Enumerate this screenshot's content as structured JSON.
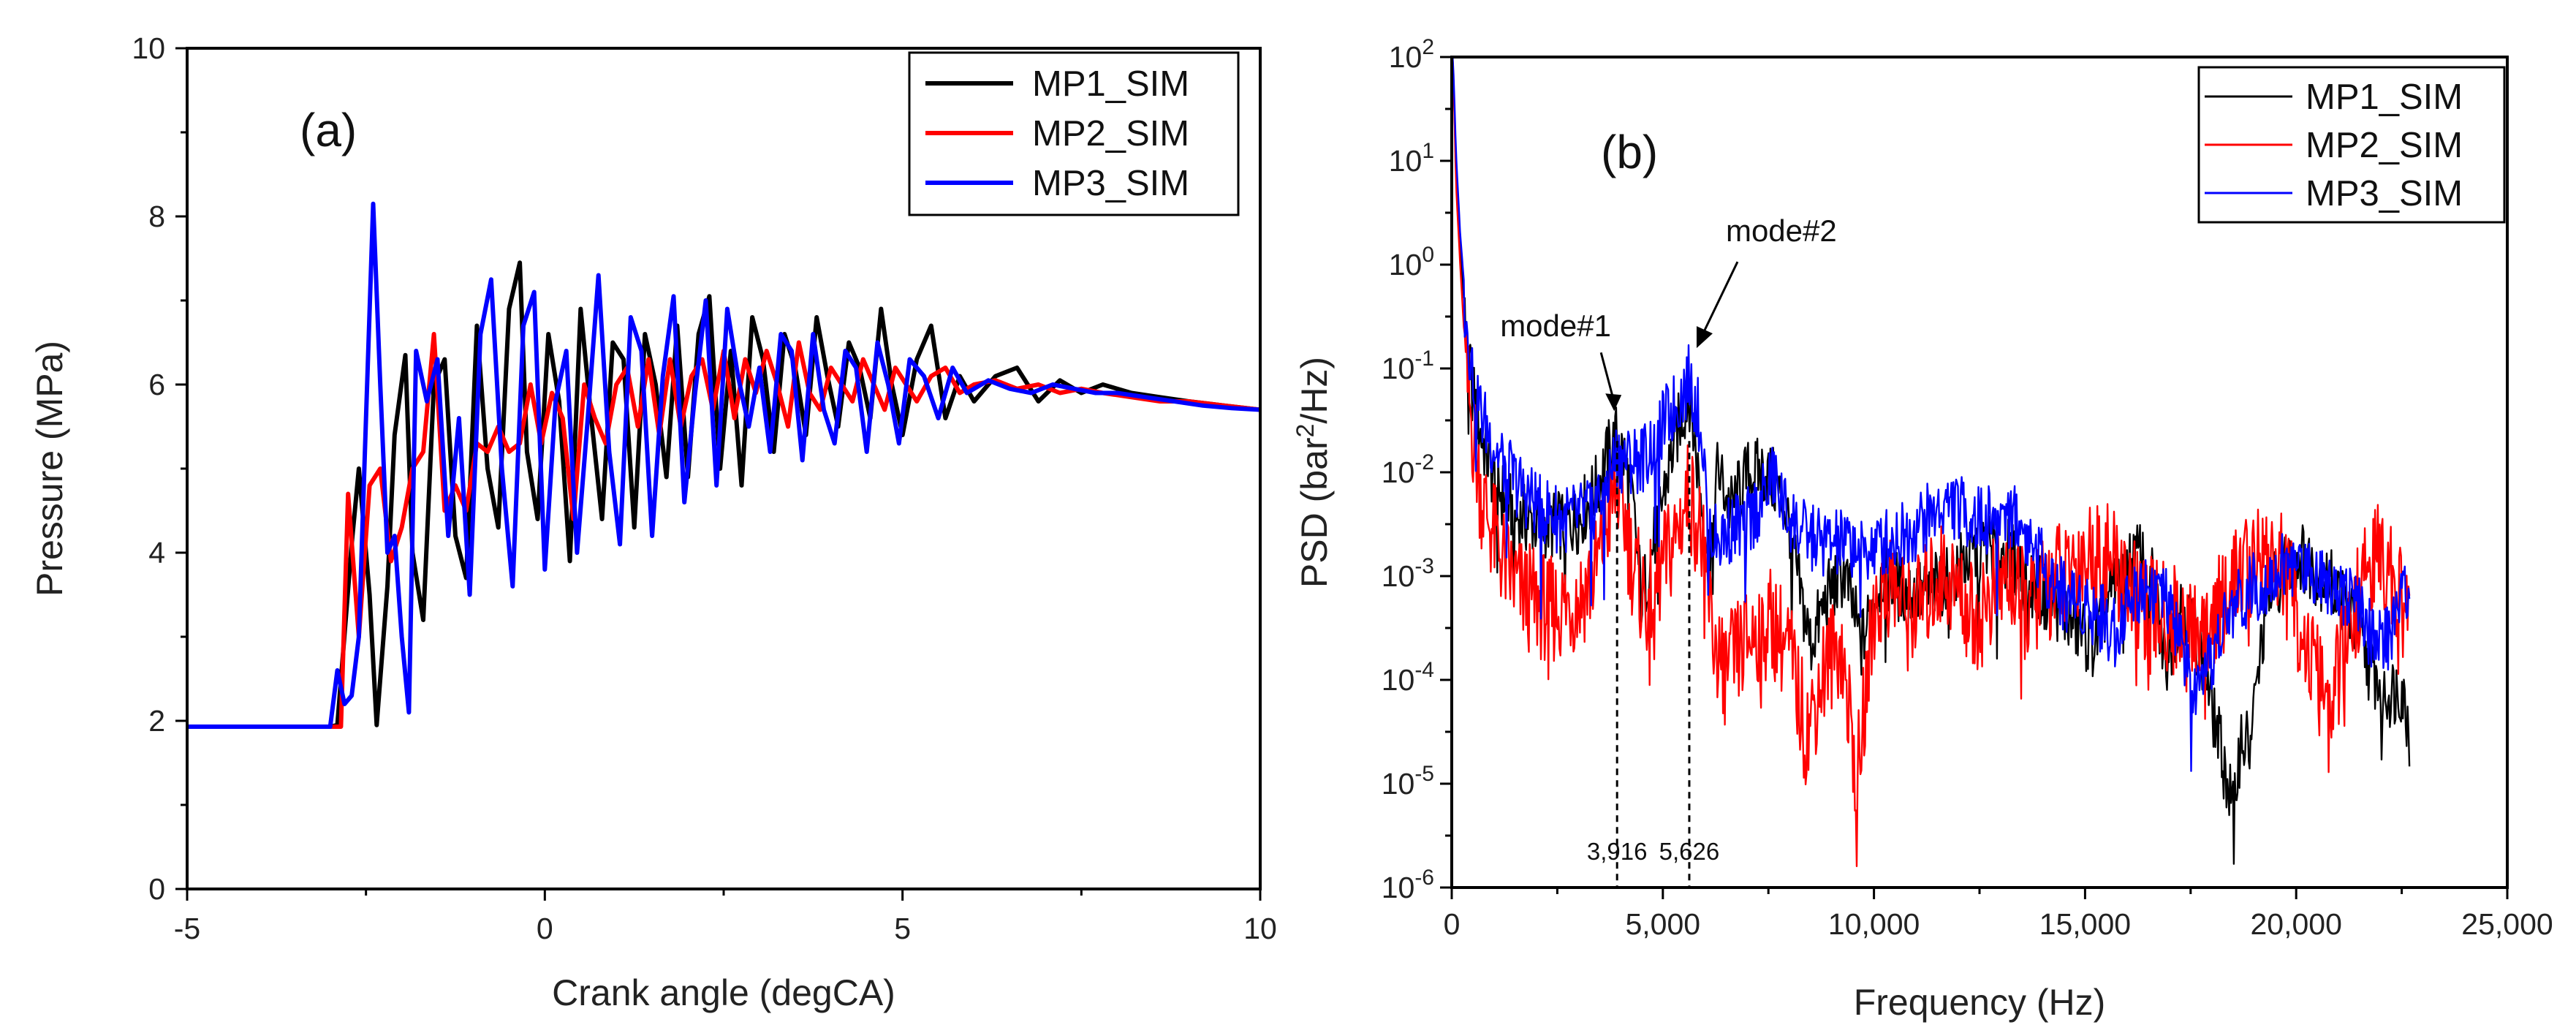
{
  "chart_data": [
    {
      "type": "line",
      "panel_label": "(a)",
      "xlabel": "Crank angle (degCA)",
      "ylabel": "Pressure (MPa)",
      "xlim": [
        -5,
        10
      ],
      "ylim": [
        0,
        10
      ],
      "x_ticks": [
        -5,
        0,
        5,
        10
      ],
      "x_tick_labels": [
        "-5",
        "0",
        "5",
        "10"
      ],
      "y_ticks": [
        0,
        2,
        4,
        6,
        8,
        10
      ],
      "y_tick_labels": [
        "0",
        "2",
        "4",
        "6",
        "8",
        "10"
      ],
      "legend_position": "top-right",
      "series": [
        {
          "name": "MP1_SIM",
          "color": "#000000",
          "x": [
            -5,
            -3,
            -2.9,
            -2.7,
            -2.6,
            -2.45,
            -2.35,
            -2.2,
            -2.1,
            -1.95,
            -1.85,
            -1.7,
            -1.55,
            -1.4,
            -1.25,
            -1.1,
            -0.95,
            -0.8,
            -0.65,
            -0.5,
            -0.35,
            -0.25,
            -0.1,
            0.05,
            0.2,
            0.35,
            0.5,
            0.65,
            0.8,
            0.95,
            1.1,
            1.25,
            1.4,
            1.55,
            1.7,
            1.85,
            2.0,
            2.15,
            2.3,
            2.45,
            2.6,
            2.75,
            2.9,
            3.05,
            3.2,
            3.35,
            3.5,
            3.65,
            3.8,
            3.95,
            4.1,
            4.25,
            4.4,
            4.55,
            4.7,
            4.85,
            5.0,
            5.2,
            5.4,
            5.6,
            5.8,
            6.0,
            6.3,
            6.6,
            6.9,
            7.2,
            7.5,
            7.8,
            8.2,
            8.6,
            9.0,
            9.5,
            10
          ],
          "y": [
            1.93,
            1.93,
            1.95,
            4.1,
            5.0,
            3.5,
            1.95,
            3.6,
            5.4,
            6.35,
            4.0,
            3.2,
            6.0,
            6.3,
            4.2,
            3.7,
            6.7,
            5.0,
            4.3,
            6.9,
            7.45,
            5.2,
            4.4,
            6.6,
            5.8,
            3.9,
            6.9,
            5.6,
            4.4,
            6.5,
            6.3,
            4.3,
            6.6,
            6.0,
            4.9,
            6.7,
            4.9,
            6.6,
            7.05,
            5.0,
            6.4,
            4.8,
            6.8,
            6.3,
            5.2,
            6.6,
            6.2,
            5.4,
            6.8,
            6.1,
            5.5,
            6.5,
            6.2,
            5.6,
            6.9,
            6.0,
            5.4,
            6.3,
            6.7,
            5.6,
            6.1,
            5.8,
            6.1,
            6.2,
            5.8,
            6.05,
            5.9,
            6.0,
            5.9,
            5.85,
            5.8,
            5.75,
            5.7
          ]
        },
        {
          "name": "MP2_SIM",
          "color": "#ff0000",
          "x": [
            -5,
            -2.85,
            -2.75,
            -2.6,
            -2.45,
            -2.3,
            -2.15,
            -2.0,
            -1.85,
            -1.7,
            -1.55,
            -1.4,
            -1.25,
            -1.1,
            -0.95,
            -0.8,
            -0.65,
            -0.5,
            -0.35,
            -0.2,
            -0.05,
            0.1,
            0.25,
            0.4,
            0.55,
            0.7,
            0.85,
            1.0,
            1.15,
            1.3,
            1.45,
            1.6,
            1.75,
            1.9,
            2.05,
            2.2,
            2.35,
            2.5,
            2.65,
            2.8,
            2.95,
            3.1,
            3.25,
            3.4,
            3.55,
            3.7,
            3.85,
            4.0,
            4.15,
            4.3,
            4.45,
            4.6,
            4.75,
            4.9,
            5.05,
            5.2,
            5.4,
            5.6,
            5.8,
            6.0,
            6.3,
            6.6,
            6.9,
            7.2,
            7.5,
            7.8,
            8.2,
            8.6,
            9.0,
            9.5,
            10
          ],
          "y": [
            1.93,
            1.93,
            4.7,
            3.0,
            4.8,
            5.0,
            3.9,
            4.3,
            5.0,
            5.2,
            6.6,
            4.5,
            4.8,
            4.5,
            5.3,
            5.2,
            5.5,
            5.2,
            5.3,
            6.0,
            5.3,
            5.9,
            5.6,
            4.4,
            6.0,
            5.6,
            5.3,
            6.0,
            6.2,
            5.5,
            6.3,
            5.4,
            6.3,
            5.5,
            6.1,
            6.3,
            5.7,
            6.4,
            5.6,
            6.3,
            5.9,
            6.4,
            6.0,
            5.5,
            6.5,
            5.9,
            5.7,
            6.2,
            6.0,
            5.8,
            6.3,
            6.0,
            5.7,
            6.2,
            6.0,
            5.8,
            6.1,
            6.2,
            5.9,
            6.0,
            6.05,
            5.95,
            6.0,
            5.9,
            5.95,
            5.9,
            5.85,
            5.8,
            5.8,
            5.75,
            5.7
          ]
        },
        {
          "name": "MP3_SIM",
          "color": "#0000ff",
          "x": [
            -5,
            -3,
            -2.9,
            -2.8,
            -2.7,
            -2.6,
            -2.5,
            -2.4,
            -2.3,
            -2.2,
            -2.1,
            -2.0,
            -1.9,
            -1.8,
            -1.65,
            -1.5,
            -1.35,
            -1.2,
            -1.05,
            -0.9,
            -0.75,
            -0.6,
            -0.45,
            -0.3,
            -0.15,
            0.0,
            0.15,
            0.3,
            0.45,
            0.6,
            0.75,
            0.9,
            1.05,
            1.2,
            1.35,
            1.5,
            1.65,
            1.8,
            1.95,
            2.1,
            2.25,
            2.4,
            2.55,
            2.7,
            2.85,
            3.0,
            3.15,
            3.3,
            3.45,
            3.6,
            3.75,
            3.9,
            4.05,
            4.2,
            4.35,
            4.5,
            4.65,
            4.8,
            4.95,
            5.1,
            5.3,
            5.5,
            5.7,
            5.9,
            6.2,
            6.5,
            6.8,
            7.1,
            7.4,
            7.7,
            8.0,
            8.4,
            8.8,
            9.2,
            9.6,
            10
          ],
          "y": [
            1.93,
            1.93,
            2.6,
            2.2,
            2.3,
            3.0,
            5.6,
            8.15,
            6.0,
            4.0,
            4.2,
            3.0,
            2.1,
            6.4,
            5.8,
            6.3,
            4.2,
            5.6,
            3.5,
            6.6,
            7.25,
            5.0,
            3.6,
            6.7,
            7.1,
            3.8,
            5.8,
            6.4,
            4.0,
            5.6,
            7.3,
            5.2,
            4.1,
            6.8,
            6.4,
            4.2,
            6.1,
            7.05,
            4.6,
            5.9,
            7.0,
            4.8,
            6.9,
            6.1,
            5.5,
            6.2,
            5.2,
            6.6,
            6.4,
            5.1,
            6.6,
            5.7,
            5.3,
            6.4,
            6.2,
            5.2,
            6.5,
            6.0,
            5.3,
            6.3,
            6.1,
            5.6,
            6.2,
            5.9,
            6.05,
            5.95,
            5.9,
            6.0,
            5.95,
            5.9,
            5.9,
            5.85,
            5.8,
            5.75,
            5.72,
            5.7
          ]
        }
      ]
    },
    {
      "type": "line",
      "panel_label": "(b)",
      "xlabel": "Frequency (Hz)",
      "ylabel_prefix": "PSD (bar",
      "ylabel_sup": "2",
      "ylabel_suffix": "/Hz)",
      "xlim": [
        0,
        25000
      ],
      "ylim_log10": [
        -6,
        2
      ],
      "y_scale": "log",
      "x_ticks": [
        0,
        5000,
        10000,
        15000,
        20000,
        25000
      ],
      "x_tick_labels": [
        "0",
        "5,000",
        "10,000",
        "15,000",
        "20,000",
        "25,000"
      ],
      "y_tick_exponents": [
        -6,
        -5,
        -4,
        -3,
        -2,
        -1,
        0,
        1,
        2
      ],
      "y_tick_base": "10",
      "y_tick_sups": [
        "-6",
        "-5",
        "-4",
        "-3",
        "-2",
        "-1",
        "0",
        "1",
        "2"
      ],
      "legend_position": "top-right",
      "annotations": [
        {
          "text": "mode#1",
          "x": 3916,
          "y": 0.03
        },
        {
          "text": "mode#2",
          "x": 5626,
          "y": 0.11
        }
      ],
      "vlines": [
        {
          "x": 3916,
          "label": "3,916"
        },
        {
          "x": 5626,
          "label": "5,626"
        }
      ],
      "series": [
        {
          "name": "MP1_SIM",
          "color": "#000000",
          "x": [
            0,
            50,
            100,
            200,
            300,
            500,
            700,
            1000,
            1300,
            1600,
            2000,
            2500,
            3000,
            3400,
            3700,
            3916,
            4100,
            4300,
            4500,
            4700,
            5000,
            5300,
            5626,
            5900,
            6100,
            6300,
            6600,
            7000,
            7400,
            7700,
            8000,
            8200,
            8500,
            8900,
            9300,
            9700,
            10200,
            10700,
            11200,
            11700,
            12200,
            12700,
            13200,
            13700,
            14200,
            14700,
            15200,
            15600,
            16000,
            16300,
            16600,
            16900,
            17300,
            17700,
            18100,
            18500,
            18700,
            18900,
            19300,
            19700,
            20100,
            20500,
            20900,
            21300,
            21700,
            22100,
            22500,
            22700
          ],
          "y": [
            150,
            50,
            8,
            1.5,
            0.4,
            0.08,
            0.03,
            0.012,
            0.007,
            0.005,
            0.0045,
            0.0042,
            0.005,
            0.009,
            0.02,
            0.03,
            0.018,
            0.006,
            0.0008,
            0.002,
            0.008,
            0.03,
            0.08,
            0.008,
            0.002,
            0.015,
            0.006,
            0.013,
            0.014,
            0.01,
            0.0045,
            0.0012,
            0.0003,
            0.0009,
            0.0015,
            0.0003,
            0.0015,
            0.001,
            0.0009,
            0.0013,
            0.002,
            0.0028,
            0.0022,
            0.0012,
            0.0008,
            0.0005,
            0.0003,
            0.0009,
            0.0017,
            0.0022,
            0.0012,
            0.0002,
            0.0008,
            0.0003,
            5e-05,
            8e-06,
            4e-05,
            3e-05,
            0.0008,
            0.0016,
            0.0022,
            0.0015,
            0.0011,
            0.0006,
            0.0002,
            0.0001,
            0.00012,
            4e-05
          ]
        },
        {
          "name": "MP2_SIM",
          "color": "#ff0000",
          "x": [
            0,
            50,
            100,
            200,
            300,
            500,
            700,
            1000,
            1300,
            1600,
            2000,
            2500,
            3000,
            3400,
            3700,
            3916,
            4100,
            4300,
            4600,
            5000,
            5300,
            5626,
            5900,
            6200,
            6500,
            6800,
            7200,
            7600,
            8000,
            8400,
            8800,
            9200,
            9600,
            10000,
            10400,
            10800,
            11200,
            11600,
            12000,
            12400,
            12800,
            13200,
            13600,
            14000,
            14500,
            15000,
            15500,
            16000,
            16400,
            16800,
            17200,
            17600,
            18000,
            18400,
            18800,
            19200,
            19600,
            20000,
            20400,
            20800,
            21200,
            21600,
            22000,
            22400,
            22700
          ],
          "y": [
            150,
            50,
            6,
            1,
            0.2,
            0.04,
            0.01,
            0.004,
            0.002,
            0.0012,
            0.0009,
            0.0008,
            0.001,
            0.0018,
            0.006,
            0.012,
            0.006,
            0.002,
            0.0009,
            0.002,
            0.004,
            0.011,
            0.004,
            0.0004,
            0.0002,
            0.0003,
            0.0005,
            0.0006,
            0.0003,
            5e-05,
            0.0002,
            0.0004,
            2e-05,
            0.0008,
            0.0015,
            0.0007,
            0.001,
            0.0018,
            0.0012,
            0.0006,
            0.0011,
            0.0017,
            0.0008,
            0.0012,
            0.002,
            0.0025,
            0.0025,
            0.0015,
            0.0009,
            0.0007,
            0.0006,
            0.0005,
            0.0007,
            0.0012,
            0.002,
            0.0028,
            0.0022,
            0.0008,
            0.0002,
            0.0001,
            0.0004,
            0.0015,
            0.0028,
            0.0012,
            0.0006
          ]
        },
        {
          "name": "MP3_SIM",
          "color": "#0000ff",
          "x": [
            0,
            50,
            100,
            200,
            300,
            500,
            700,
            1000,
            1300,
            1600,
            2000,
            2500,
            3000,
            3400,
            3700,
            3916,
            4200,
            4600,
            5000,
            5300,
            5626,
            5900,
            6100,
            6300,
            6600,
            7000,
            7400,
            7600,
            7900,
            8300,
            8700,
            9100,
            9500,
            9900,
            10300,
            10700,
            11100,
            11500,
            11800,
            12200,
            12600,
            13000,
            13300,
            13700,
            14100,
            14500,
            14900,
            15300,
            15700,
            16100,
            16500,
            16900,
            17300,
            17700,
            18100,
            18500,
            18900,
            19300,
            19700,
            20100,
            20500,
            20900,
            21300,
            21700,
            22100,
            22500,
            22700
          ],
          "y": [
            150,
            60,
            12,
            2,
            0.6,
            0.12,
            0.05,
            0.025,
            0.015,
            0.01,
            0.007,
            0.005,
            0.005,
            0.007,
            0.012,
            0.02,
            0.018,
            0.02,
            0.04,
            0.06,
            0.11,
            0.04,
            0.004,
            0.003,
            0.004,
            0.0045,
            0.008,
            0.013,
            0.006,
            0.0035,
            0.003,
            0.0028,
            0.0028,
            0.0025,
            0.003,
            0.0035,
            0.0045,
            0.006,
            0.007,
            0.0055,
            0.0045,
            0.006,
            0.0055,
            0.003,
            0.0015,
            0.0009,
            0.0008,
            0.0006,
            0.0004,
            0.0009,
            0.0012,
            0.0008,
            0.0003,
            8e-05,
            0.0003,
            0.0007,
            0.001,
            0.0013,
            0.0017,
            0.0018,
            0.0015,
            0.0012,
            0.0009,
            0.0004,
            0.0003,
            0.0009,
            0.0011
          ]
        }
      ]
    }
  ]
}
